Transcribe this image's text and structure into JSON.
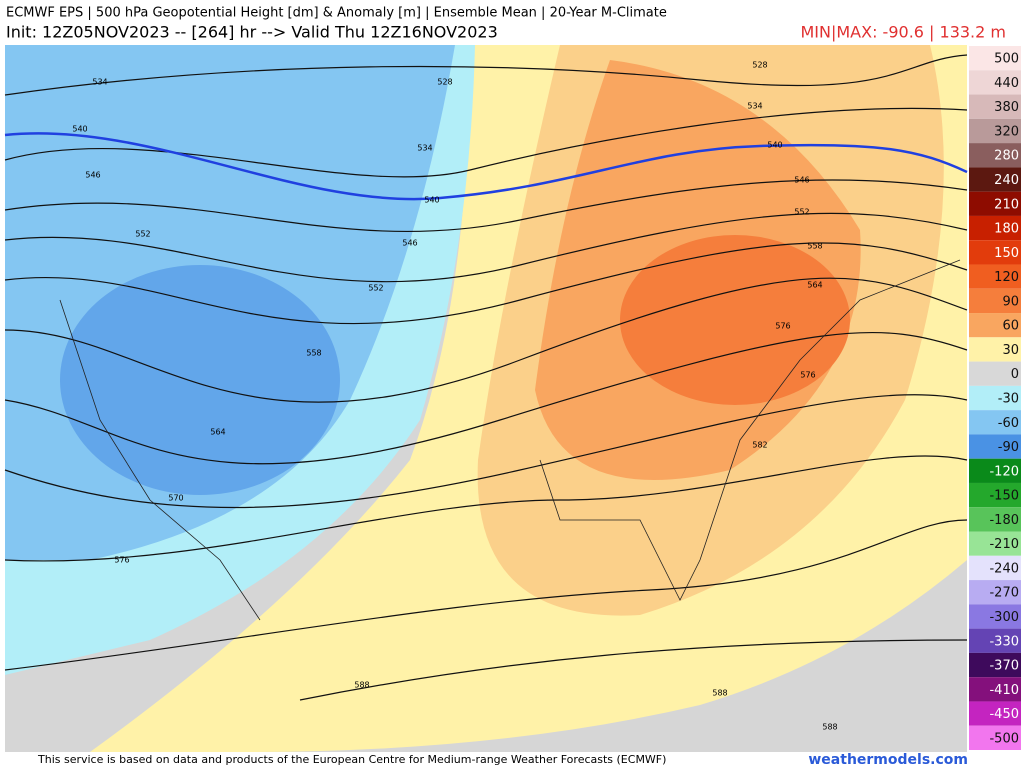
{
  "header": {
    "title": "ECMWF EPS | 500 hPa Geopotential Height [dm] & Anomaly [m] | Ensemble Mean | 20-Year M-Climate",
    "subtitle": "Init: 12Z05NOV2023 -- [264] hr --> Valid Thu 12Z16NOV2023",
    "minmax": "MIN|MAX: -90.6 | 133.2 m"
  },
  "colorbar": [
    {
      "value": 500,
      "color": "#fbe6e6"
    },
    {
      "value": 440,
      "color": "#eed6d6"
    },
    {
      "value": 380,
      "color": "#d7b9b9"
    },
    {
      "value": 320,
      "color": "#b99a9a"
    },
    {
      "value": 280,
      "color": "#8a5e5e"
    },
    {
      "value": 240,
      "color": "#5c1810"
    },
    {
      "value": 210,
      "color": "#8e0c00"
    },
    {
      "value": 180,
      "color": "#c82000"
    },
    {
      "value": 150,
      "color": "#e23c0c"
    },
    {
      "value": 120,
      "color": "#f05e20"
    },
    {
      "value": 90,
      "color": "#f57e3c"
    },
    {
      "value": 60,
      "color": "#f9a660"
    },
    {
      "value": 30,
      "color": "#fff2a8"
    },
    {
      "value": 0,
      "color": "#d8d8d8"
    },
    {
      "value": -30,
      "color": "#b2eef8"
    },
    {
      "value": -60,
      "color": "#84c6f2"
    },
    {
      "value": -90,
      "color": "#4a92e4"
    },
    {
      "value": -120,
      "color": "#0a8a1a"
    },
    {
      "value": -150,
      "color": "#24a82c"
    },
    {
      "value": -180,
      "color": "#58c45a"
    },
    {
      "value": -210,
      "color": "#98e496"
    },
    {
      "value": -240,
      "color": "#e4e2fc"
    },
    {
      "value": -270,
      "color": "#b8acf2"
    },
    {
      "value": -300,
      "color": "#8a78e2"
    },
    {
      "value": -330,
      "color": "#6444b4"
    },
    {
      "value": -370,
      "color": "#3e0a5c"
    },
    {
      "value": -410,
      "color": "#84107c"
    },
    {
      "value": -450,
      "color": "#c424c0"
    },
    {
      "value": -500,
      "color": "#f276ee"
    }
  ],
  "contour_labels": [
    534,
    528,
    528,
    534,
    534,
    540,
    540,
    540,
    546,
    546,
    546,
    552,
    552,
    552,
    558,
    558,
    564,
    564,
    570,
    576,
    576,
    576,
    582,
    588,
    588,
    588
  ],
  "footer": {
    "credit": "This service is based on data and products of the European Centre for Medium-range Weather Forecasts (ECMWF)",
    "brand": "weathermodels.com"
  }
}
